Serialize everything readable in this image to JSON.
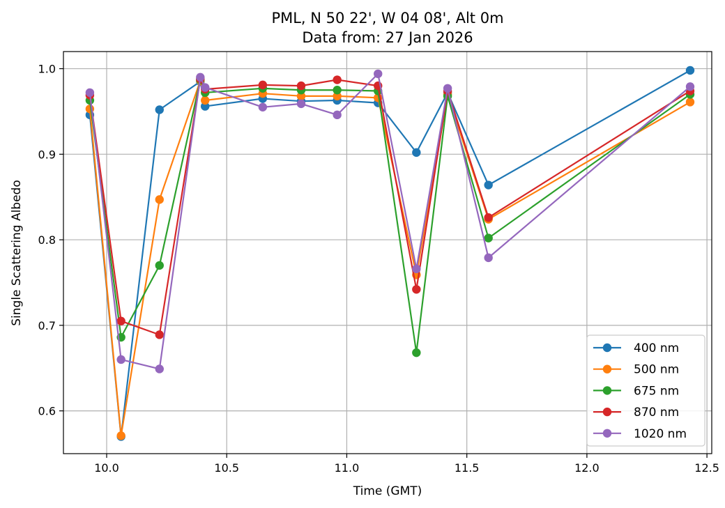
{
  "chart_data": {
    "type": "line",
    "title": "PML, N 50 22', W 04 08', Alt 0m",
    "subtitle": "Data from: 27 Jan 2026",
    "xlabel": "Time (GMT)",
    "ylabel": "Single Scattering Albedo",
    "xlim": [
      9.82,
      12.52
    ],
    "ylim": [
      0.55,
      1.02
    ],
    "xticks": [
      "10.0",
      "10.5",
      "11.0",
      "11.5",
      "12.0",
      "12.5"
    ],
    "xtick_values": [
      10.0,
      10.5,
      11.0,
      11.5,
      12.0,
      12.5
    ],
    "yticks": [
      "0.6",
      "0.7",
      "0.8",
      "0.9",
      "1.0"
    ],
    "ytick_values": [
      0.6,
      0.7,
      0.8,
      0.9,
      1.0
    ],
    "grid": true,
    "legend_position": "lower-right",
    "x": [
      9.93,
      10.06,
      10.22,
      10.39,
      10.41,
      10.65,
      10.81,
      10.96,
      11.13,
      11.29,
      11.42,
      11.59,
      12.43
    ],
    "series": [
      {
        "name": "400 nm",
        "color": "#1f77b4",
        "x": [
          9.93,
          10.06,
          10.22,
          10.39,
          10.41,
          10.65,
          10.81,
          10.96,
          11.13,
          11.29,
          11.42,
          11.59,
          12.43
        ],
        "values": [
          0.946,
          0.57,
          0.952,
          0.985,
          0.956,
          0.965,
          0.962,
          0.963,
          0.96,
          0.902,
          0.972,
          0.864,
          0.998
        ]
      },
      {
        "name": "500 nm",
        "color": "#ff7f0e",
        "x": [
          9.93,
          10.06,
          10.22,
          10.39,
          10.41,
          10.65,
          10.81,
          10.96,
          11.13,
          11.29,
          11.42,
          11.59,
          12.43
        ],
        "values": [
          0.953,
          0.571,
          0.847,
          0.986,
          0.963,
          0.971,
          0.968,
          0.968,
          0.966,
          0.759,
          0.97,
          0.824,
          0.961
        ]
      },
      {
        "name": "675 nm",
        "color": "#2ca02c",
        "x": [
          9.93,
          10.06,
          10.22,
          10.39,
          10.41,
          10.65,
          10.81,
          10.96,
          11.13,
          11.29,
          11.42,
          11.59,
          12.43
        ],
        "values": [
          0.963,
          0.686,
          0.77,
          0.987,
          0.972,
          0.977,
          0.975,
          0.975,
          0.974,
          0.668,
          0.968,
          0.802,
          0.97
        ]
      },
      {
        "name": "870 nm",
        "color": "#d62728",
        "x": [
          9.93,
          10.06,
          10.22,
          10.39,
          10.41,
          10.65,
          10.81,
          10.96,
          11.13,
          11.29,
          11.42,
          11.59,
          12.43
        ],
        "values": [
          0.969,
          0.705,
          0.689,
          0.988,
          0.976,
          0.981,
          0.98,
          0.987,
          0.98,
          0.742,
          0.974,
          0.826,
          0.974
        ]
      },
      {
        "name": "1020 nm",
        "color": "#9467bd",
        "x": [
          9.93,
          10.06,
          10.22,
          10.39,
          10.41,
          10.65,
          10.81,
          10.96,
          11.13,
          11.29,
          11.42,
          11.59,
          12.43
        ],
        "values": [
          0.972,
          0.66,
          0.649,
          0.99,
          0.978,
          0.955,
          0.959,
          0.946,
          0.994,
          0.766,
          0.977,
          0.779,
          0.979
        ]
      }
    ]
  }
}
